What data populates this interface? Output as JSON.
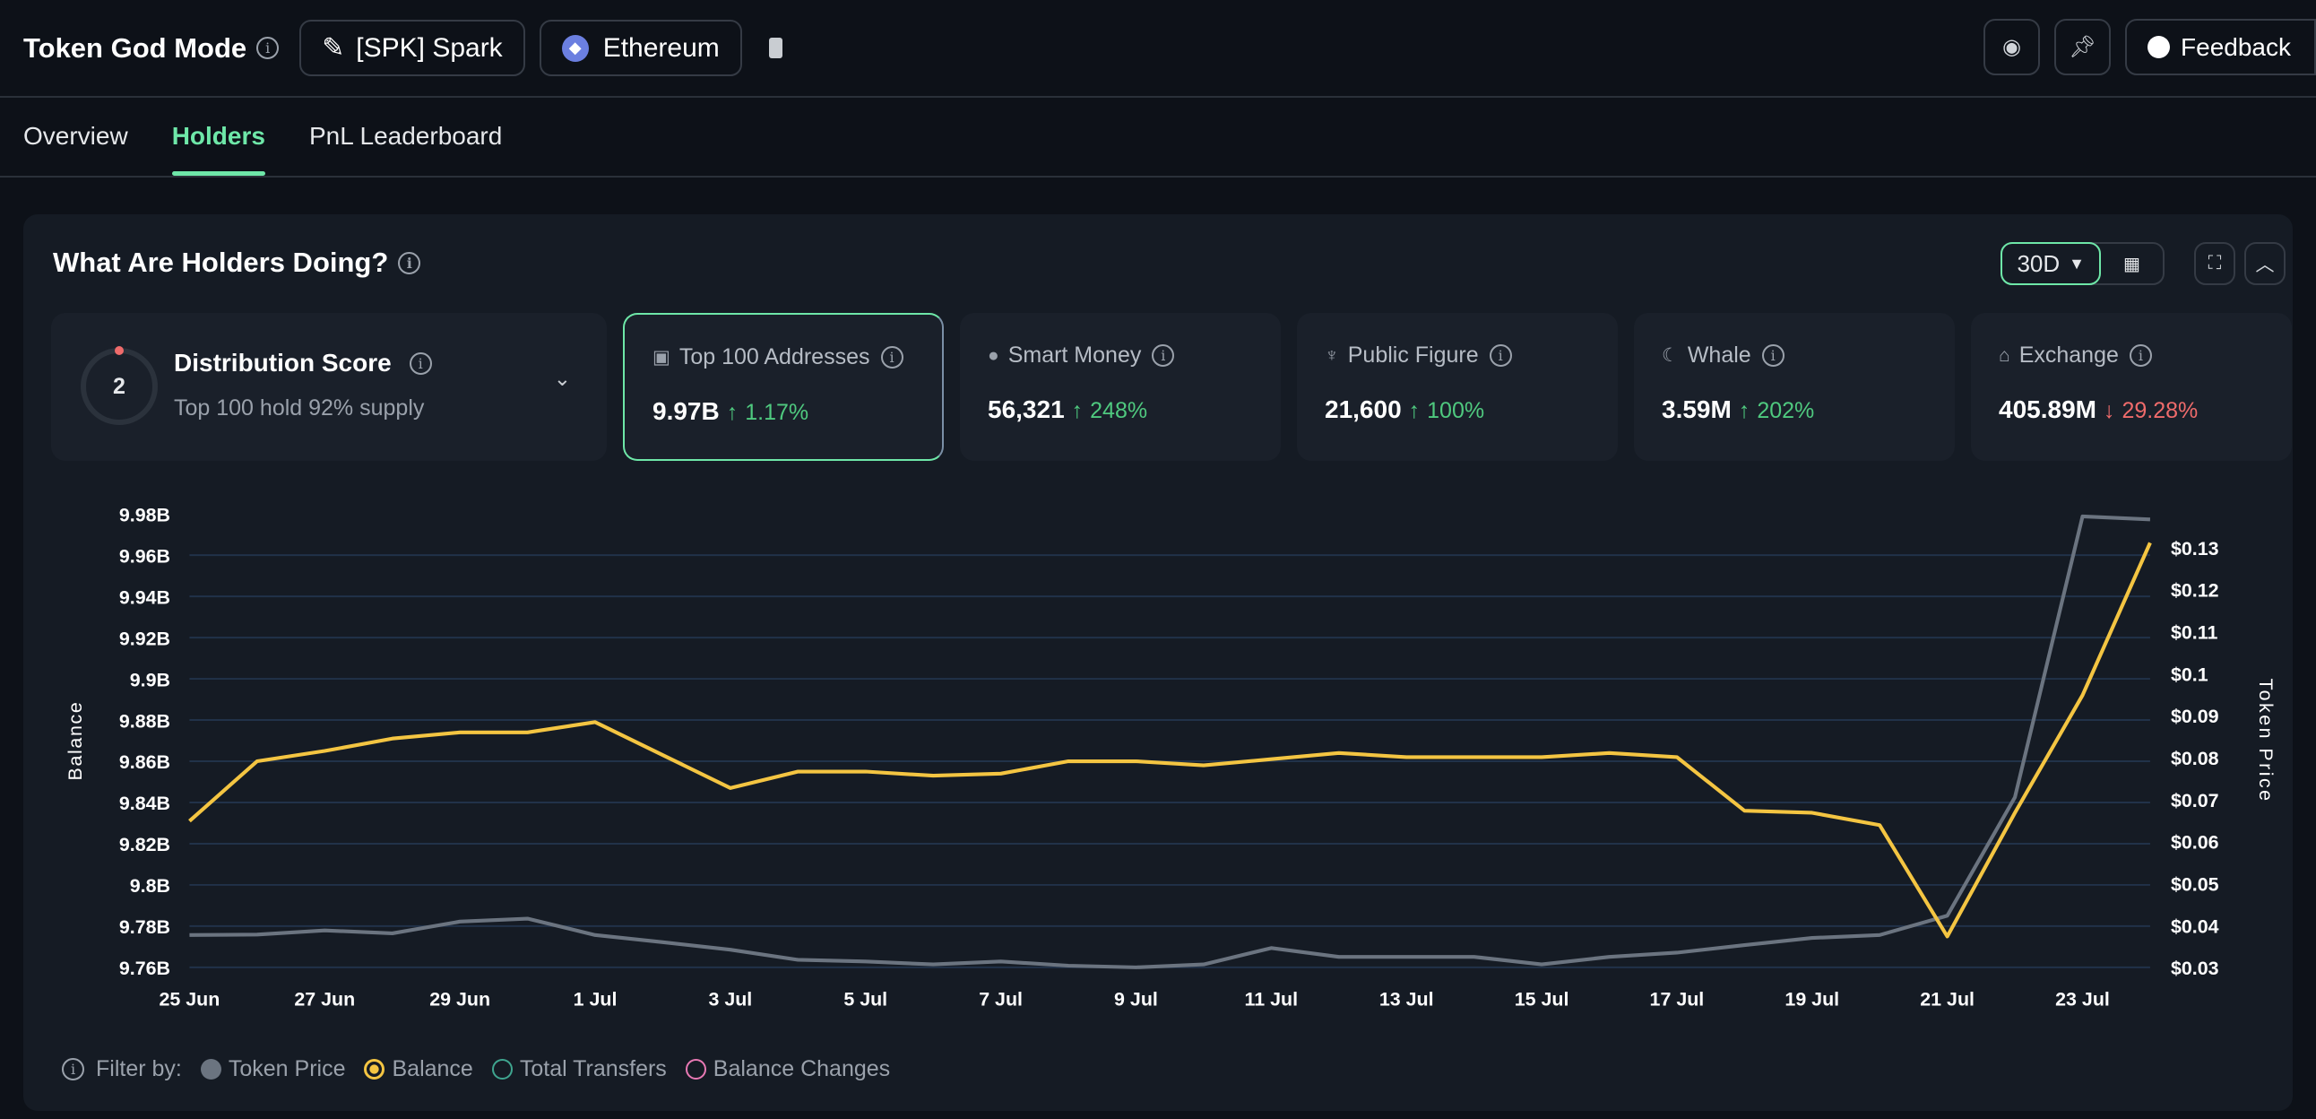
{
  "header": {
    "title": "Token God Mode",
    "token": "[SPK] Spark",
    "chain": "Ethereum",
    "feedback": "Feedback"
  },
  "tabs": [
    {
      "label": "Overview"
    },
    {
      "label": "Holders"
    },
    {
      "label": "PnL Leaderboard"
    }
  ],
  "panel": {
    "title": "What Are Holders Doing?",
    "range": "30D"
  },
  "distribution": {
    "score": "2",
    "title": "Distribution Score",
    "subtitle": "Top 100 hold 92% supply",
    "score_fraction": 0.02
  },
  "stats": [
    {
      "label": "Top 100 Addresses",
      "value": "9.97B",
      "change": "1.17%",
      "dir": "up",
      "icon": "money-icon"
    },
    {
      "label": "Smart Money",
      "value": "56,321",
      "change": "248%",
      "dir": "up",
      "icon": "sunglasses-icon"
    },
    {
      "label": "Public Figure",
      "value": "21,600",
      "change": "100%",
      "dir": "up",
      "icon": "figure-icon"
    },
    {
      "label": "Whale",
      "value": "3.59M",
      "change": "202%",
      "dir": "up",
      "icon": "whale-icon"
    },
    {
      "label": "Exchange",
      "value": "405.89M",
      "change": "29.28%",
      "dir": "down",
      "icon": "bank-icon"
    }
  ],
  "legend": {
    "filter": "Filter by:",
    "items": [
      "Token Price",
      "Balance",
      "Total Transfers",
      "Balance Changes"
    ]
  },
  "colors": {
    "accent": "#6ee7a8",
    "balance": "#f4c542",
    "price": "#6b7480",
    "up": "#4fc97f",
    "down": "#ef6b6b"
  },
  "chart_data": {
    "type": "line",
    "x": [
      "25 Jun",
      "26 Jun",
      "27 Jun",
      "28 Jun",
      "29 Jun",
      "30 Jun",
      "1 Jul",
      "2 Jul",
      "3 Jul",
      "4 Jul",
      "5 Jul",
      "6 Jul",
      "7 Jul",
      "8 Jul",
      "9 Jul",
      "10 Jul",
      "11 Jul",
      "12 Jul",
      "13 Jul",
      "14 Jul",
      "15 Jul",
      "16 Jul",
      "17 Jul",
      "18 Jul",
      "19 Jul",
      "20 Jul",
      "21 Jul",
      "22 Jul",
      "23 Jul",
      "24 Jul"
    ],
    "xticks": [
      "25 Jun",
      "27 Jun",
      "29 Jun",
      "1 Jul",
      "3 Jul",
      "5 Jul",
      "7 Jul",
      "9 Jul",
      "11 Jul",
      "13 Jul",
      "15 Jul",
      "17 Jul",
      "19 Jul",
      "21 Jul",
      "23 Jul"
    ],
    "ylabel": "Balance",
    "y2label": "Token Price",
    "ylim": [
      9.76,
      9.98
    ],
    "y2lim": [
      0.03,
      0.138
    ],
    "yticks": [
      "9.76B",
      "9.78B",
      "9.8B",
      "9.82B",
      "9.84B",
      "9.86B",
      "9.88B",
      "9.9B",
      "9.92B",
      "9.94B",
      "9.96B",
      "9.98B"
    ],
    "y2ticks": [
      "$0.03",
      "$0.04",
      "$0.05",
      "$0.06",
      "$0.07",
      "$0.08",
      "$0.09",
      "$0.1",
      "$0.11",
      "$0.12",
      "$0.13"
    ],
    "series": [
      {
        "name": "Balance",
        "axis": "left",
        "values": [
          9.831,
          9.86,
          9.865,
          9.871,
          9.874,
          9.874,
          9.879,
          9.863,
          9.847,
          9.855,
          9.855,
          9.853,
          9.854,
          9.86,
          9.86,
          9.858,
          9.861,
          9.864,
          9.862,
          9.862,
          9.862,
          9.864,
          9.862,
          9.836,
          9.835,
          9.829,
          9.775,
          9.835,
          9.892,
          9.966
        ]
      },
      {
        "name": "Token Price",
        "axis": "right",
        "values": [
          0.0377,
          0.0378,
          0.0388,
          0.0381,
          0.0409,
          0.0416,
          0.0377,
          0.036,
          0.0342,
          0.0318,
          0.0314,
          0.0307,
          0.0314,
          0.0304,
          0.03,
          0.0307,
          0.0346,
          0.0325,
          0.0325,
          0.0325,
          0.0307,
          0.0325,
          0.0335,
          0.0353,
          0.037,
          0.0377,
          0.0423,
          0.0705,
          0.1374,
          0.1367
        ]
      }
    ]
  }
}
